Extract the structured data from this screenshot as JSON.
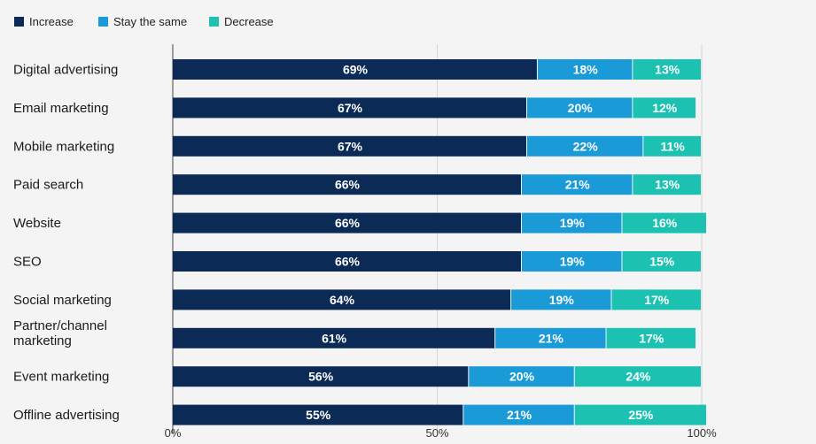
{
  "chart_data": {
    "type": "bar",
    "orientation": "horizontal",
    "stacked": true,
    "title": "",
    "xlabel": "",
    "ylabel": "",
    "xlim": [
      0,
      100
    ],
    "x_ticks": [
      "0%",
      "50%",
      "100%"
    ],
    "legend_position": "top-left",
    "grid": true,
    "categories": [
      "Digital advertising",
      "Email marketing",
      "Mobile marketing",
      "Paid search",
      "Website",
      "SEO",
      "Social marketing",
      "Partner/channel marketing",
      "Event marketing",
      "Offline advertising"
    ],
    "category_lines": [
      [
        "Digital advertising"
      ],
      [
        "Email marketing"
      ],
      [
        "Mobile marketing"
      ],
      [
        "Paid search"
      ],
      [
        "Website"
      ],
      [
        "SEO"
      ],
      [
        "Social marketing"
      ],
      [
        "Partner/channel",
        "marketing"
      ],
      [
        "Event marketing"
      ],
      [
        "Offline advertising"
      ]
    ],
    "series": [
      {
        "name": "Increase",
        "color": "#0b2a55",
        "values": [
          69,
          67,
          67,
          66,
          66,
          66,
          64,
          61,
          56,
          55
        ]
      },
      {
        "name": "Stay the same",
        "color": "#1a9ad6",
        "values": [
          18,
          20,
          22,
          21,
          19,
          19,
          19,
          21,
          20,
          21
        ]
      },
      {
        "name": "Decrease",
        "color": "#1cc1b1",
        "values": [
          13,
          12,
          11,
          13,
          16,
          15,
          17,
          17,
          24,
          25
        ]
      }
    ]
  }
}
